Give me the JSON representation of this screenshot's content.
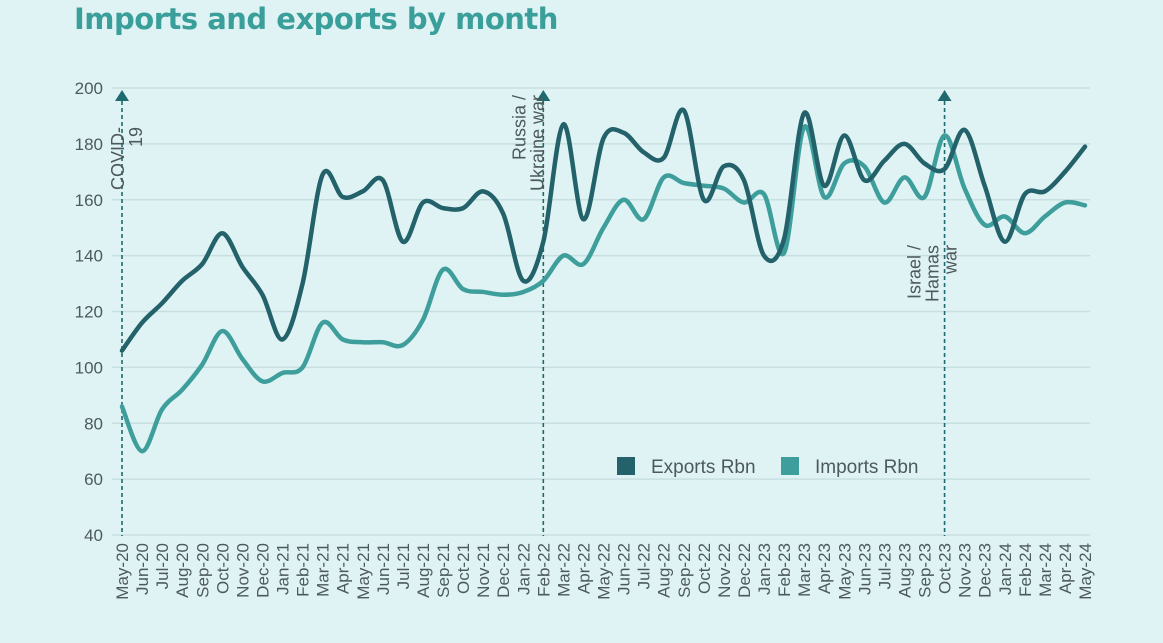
{
  "title": "Imports and exports by month",
  "colors": {
    "exports": "#23626a",
    "imports": "#3d9e9b",
    "background": "#e0f3f4",
    "grid": "#c7dfe0",
    "marker": "#1f6a6e"
  },
  "chart_data": {
    "type": "line",
    "title": "Imports and exports by month",
    "xlabel": "",
    "ylabel": "",
    "ylim": [
      40,
      200
    ],
    "yticks": [
      40,
      60,
      80,
      100,
      120,
      140,
      160,
      180,
      200
    ],
    "grid": true,
    "legend_position": "bottom-right",
    "categories": [
      "May-20",
      "Jun-20",
      "Jul-20",
      "Aug-20",
      "Sep-20",
      "Oct-20",
      "Nov-20",
      "Dec-20",
      "Jan-21",
      "Feb-21",
      "Mar-21",
      "Apr-21",
      "May-21",
      "Jun-21",
      "Jul-21",
      "Aug-21",
      "Sep-21",
      "Oct-21",
      "Nov-21",
      "Dec-21",
      "Jan-22",
      "Feb-22",
      "Mar-22",
      "Apr-22",
      "May-22",
      "Jun-22",
      "Jul-22",
      "Aug-22",
      "Sep-22",
      "Oct-22",
      "Nov-22",
      "Dec-22",
      "Jan-23",
      "Feb-23",
      "Mar-23",
      "Apr-23",
      "May-23",
      "Jun-23",
      "Jul-23",
      "Aug-23",
      "Sep-23",
      "Oct-23",
      "Nov-23",
      "Dec-23",
      "Jan-24",
      "Feb-24",
      "Mar-24",
      "Apr-24",
      "May-24"
    ],
    "series": [
      {
        "name": "Exports Rbn",
        "color": "#23626a",
        "values": [
          106,
          116,
          123,
          131,
          137,
          148,
          136,
          126,
          110,
          130,
          169,
          161,
          163,
          167,
          145,
          159,
          157,
          157,
          163,
          155,
          131,
          145,
          187,
          153,
          182,
          184,
          177,
          175,
          192,
          160,
          172,
          167,
          140,
          146,
          191,
          165,
          183,
          167,
          174,
          180,
          173,
          171,
          185,
          165,
          145,
          162,
          163,
          170,
          179
        ]
      },
      {
        "name": "Imports Rbn",
        "color": "#3d9e9b",
        "values": [
          86,
          70,
          85,
          92,
          101,
          113,
          103,
          95,
          98,
          100,
          116,
          110,
          109,
          109,
          108,
          117,
          135,
          128,
          127,
          126,
          127,
          131,
          140,
          137,
          150,
          160,
          153,
          168,
          166,
          165,
          164,
          159,
          162,
          141,
          186,
          161,
          173,
          172,
          159,
          168,
          161,
          183,
          164,
          151,
          154,
          148,
          154,
          159,
          158
        ]
      }
    ],
    "annotations": [
      {
        "x": "May-20",
        "lines": [
          "COVID-",
          "19"
        ]
      },
      {
        "x": "Feb-22",
        "lines": [
          "Russia /",
          "Ukraine war"
        ]
      },
      {
        "x": "Oct-23",
        "lines": [
          "Israel /",
          "Hamas",
          "war"
        ]
      }
    ]
  }
}
